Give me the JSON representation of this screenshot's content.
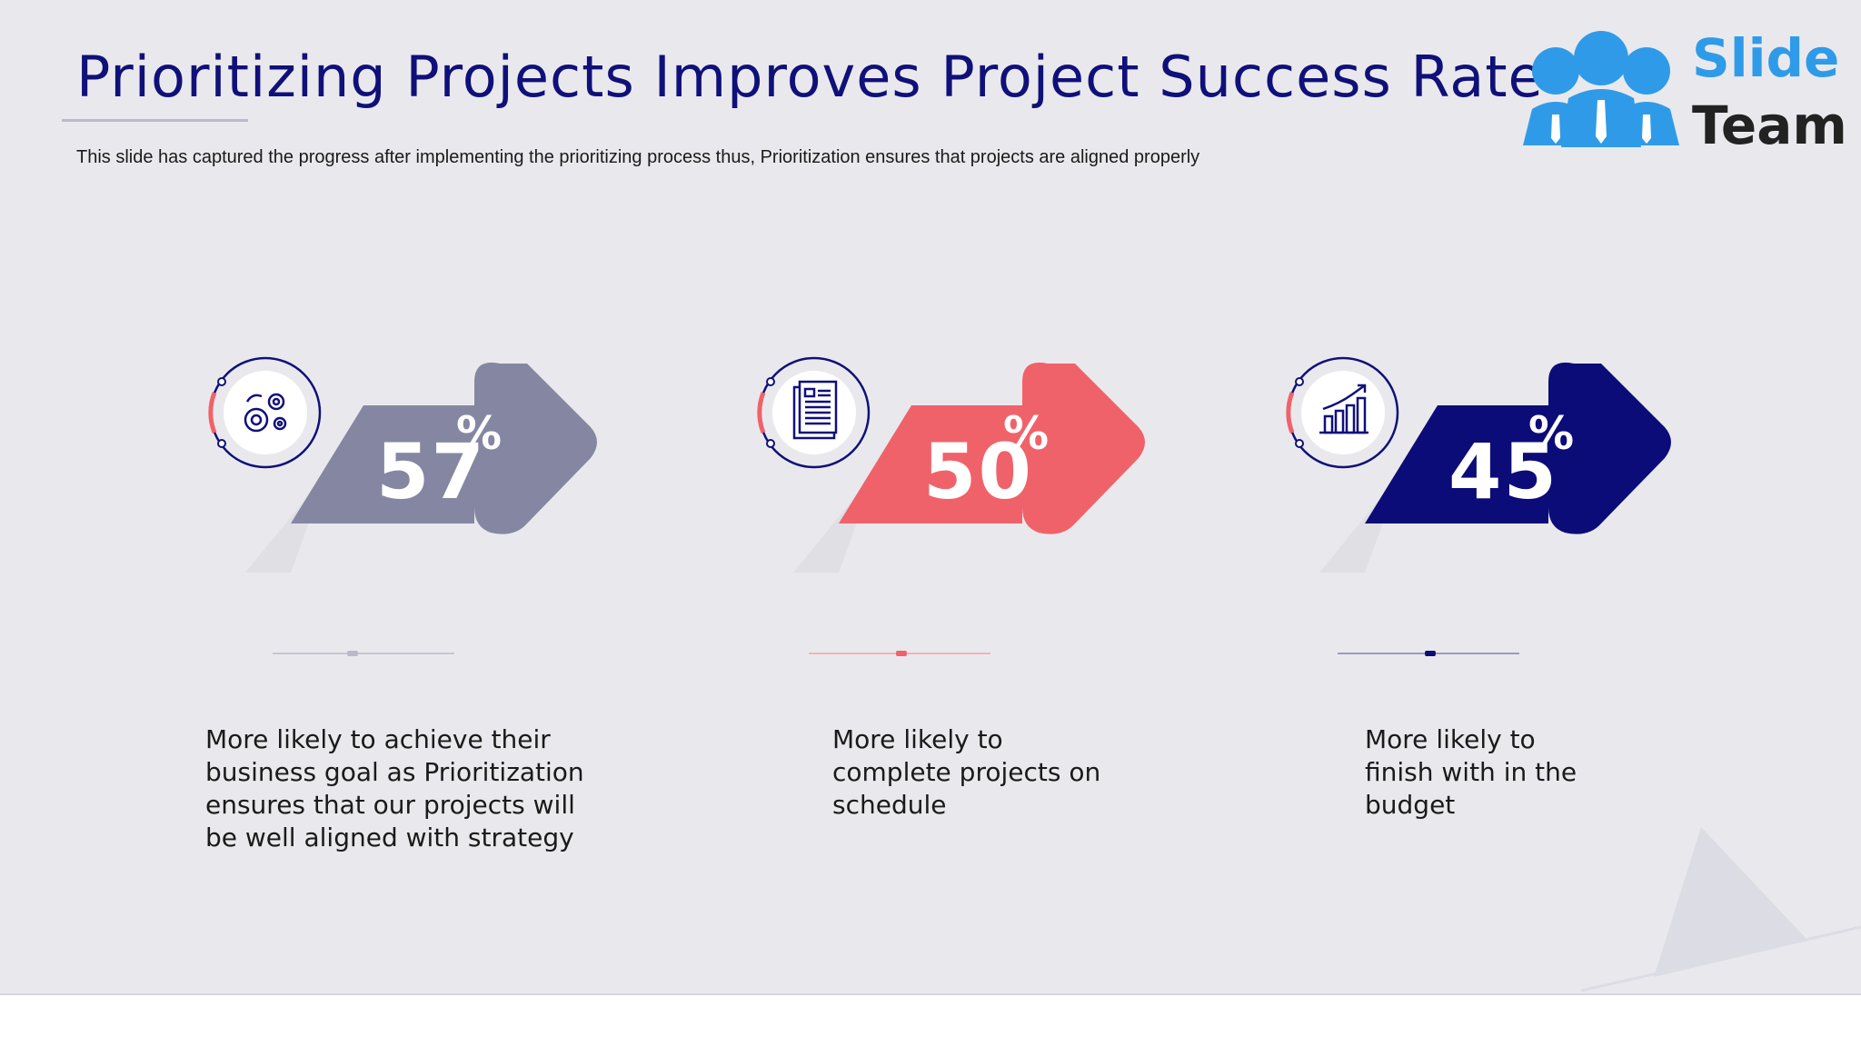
{
  "title": "Prioritizing Projects Improves Project Success Rate",
  "subtitle": "This slide has captured the progress after implementing the prioritizing process thus, Prioritization ensures that projects are aligned properly",
  "logo": {
    "line1": "Slide",
    "line2": "Team",
    "brand_color": "#2f9be8"
  },
  "colors": {
    "title": "#10107a",
    "gray": "#8587a2",
    "coral": "#f0626a",
    "navy": "#0c0c78"
  },
  "stats": [
    {
      "value": "57",
      "unit": "%",
      "icon": "gears-icon",
      "color": "#8587a2",
      "description": "More likely to achieve their\nbusiness goal as Prioritization\nensures that our projects will\nbe well aligned with strategy"
    },
    {
      "value": "50",
      "unit": "%",
      "icon": "document-icon",
      "color": "#f0626a",
      "description": "More likely to\ncomplete projects on\nschedule"
    },
    {
      "value": "45",
      "unit": "%",
      "icon": "growth-chart-icon",
      "color": "#0c0c78",
      "description": "More likely to\nfinish with in the\nbudget"
    }
  ]
}
